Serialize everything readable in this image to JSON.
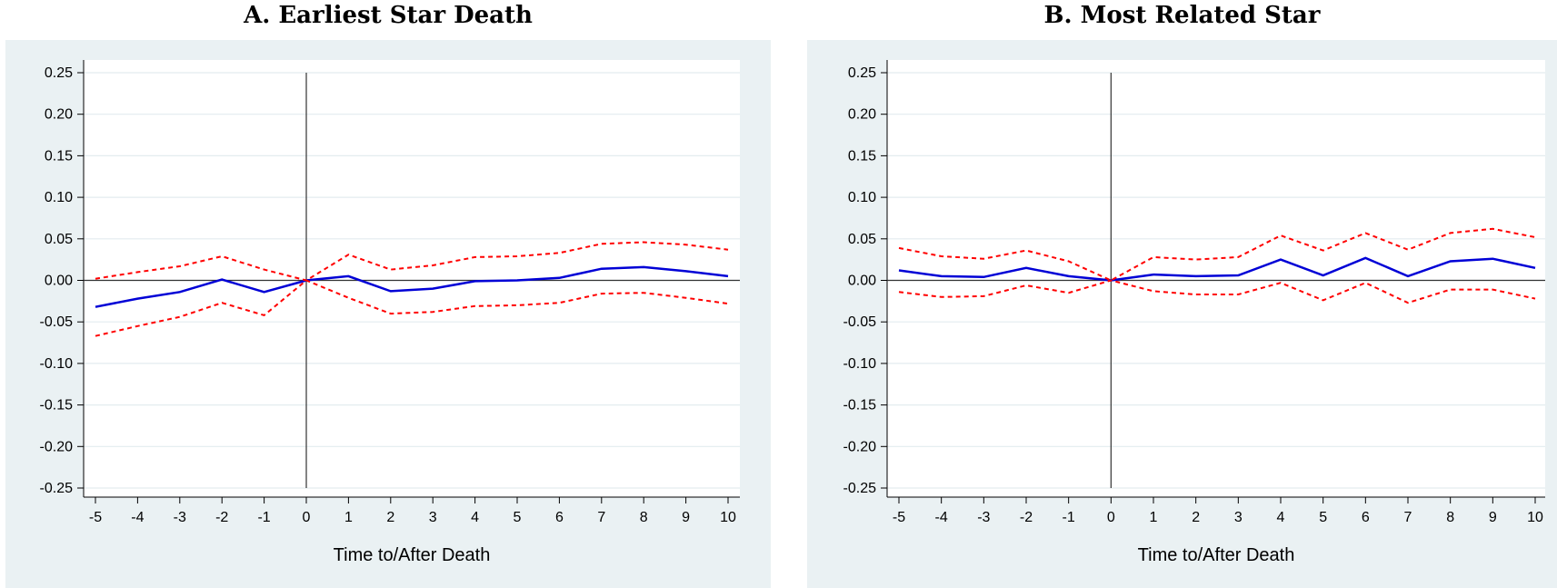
{
  "chart_data": [
    {
      "type": "line",
      "title": "A. Earliest Star Death",
      "xlabel": "Time to/After Death",
      "ylabel": "",
      "xlim": [
        -5,
        10
      ],
      "ylim": [
        -0.25,
        0.25
      ],
      "x": [
        -5,
        -4,
        -3,
        -2,
        -1,
        0,
        1,
        2,
        3,
        4,
        5,
        6,
        7,
        8,
        9,
        10
      ],
      "x_ticks": [
        "-5",
        "-4",
        "-3",
        "-2",
        "-1",
        "0",
        "1",
        "2",
        "3",
        "4",
        "5",
        "6",
        "7",
        "8",
        "9",
        "10"
      ],
      "y_ticks": [
        "0.25",
        "0.20",
        "0.15",
        "0.10",
        "0.05",
        "0.00",
        "-0.05",
        "-0.10",
        "-0.15",
        "-0.20",
        "-0.25"
      ],
      "grid": true,
      "reference_lines": {
        "x": 0,
        "y": 0
      },
      "series": [
        {
          "style": "solid",
          "color": "#0000d6",
          "values": [
            -0.032,
            -0.022,
            -0.014,
            0.001,
            -0.014,
            0.0,
            0.005,
            -0.013,
            -0.01,
            -0.001,
            0.0,
            0.003,
            0.014,
            0.016,
            0.011,
            0.005
          ]
        },
        {
          "style": "dashed",
          "color": "#ff0000",
          "values": [
            0.002,
            0.01,
            0.017,
            0.029,
            0.013,
            0.0,
            0.031,
            0.013,
            0.018,
            0.028,
            0.029,
            0.033,
            0.044,
            0.046,
            0.043,
            0.037
          ]
        },
        {
          "style": "dashed",
          "color": "#ff0000",
          "values": [
            -0.067,
            -0.055,
            -0.044,
            -0.027,
            -0.042,
            0.0,
            -0.021,
            -0.04,
            -0.038,
            -0.031,
            -0.03,
            -0.027,
            -0.016,
            -0.015,
            -0.021,
            -0.028
          ]
        }
      ]
    },
    {
      "type": "line",
      "title": "B. Most Related Star",
      "xlabel": "Time to/After Death",
      "ylabel": "",
      "xlim": [
        -5,
        10
      ],
      "ylim": [
        -0.25,
        0.25
      ],
      "x": [
        -5,
        -4,
        -3,
        -2,
        -1,
        0,
        1,
        2,
        3,
        4,
        5,
        6,
        7,
        8,
        9,
        10
      ],
      "x_ticks": [
        "-5",
        "-4",
        "-3",
        "-2",
        "-1",
        "0",
        "1",
        "2",
        "3",
        "4",
        "5",
        "6",
        "7",
        "8",
        "9",
        "10"
      ],
      "y_ticks": [
        "0.25",
        "0.20",
        "0.15",
        "0.10",
        "0.05",
        "0.00",
        "-0.05",
        "-0.10",
        "-0.15",
        "-0.20",
        "-0.25"
      ],
      "grid": true,
      "reference_lines": {
        "x": 0,
        "y": 0
      },
      "series": [
        {
          "style": "solid",
          "color": "#0000d6",
          "values": [
            0.012,
            0.005,
            0.004,
            0.015,
            0.005,
            0.0,
            0.007,
            0.005,
            0.006,
            0.025,
            0.006,
            0.027,
            0.005,
            0.023,
            0.026,
            0.015
          ]
        },
        {
          "style": "dashed",
          "color": "#ff0000",
          "values": [
            0.039,
            0.029,
            0.026,
            0.036,
            0.023,
            0.0,
            0.028,
            0.025,
            0.028,
            0.054,
            0.036,
            0.057,
            0.037,
            0.057,
            0.062,
            0.052
          ]
        },
        {
          "style": "dashed",
          "color": "#ff0000",
          "values": [
            -0.014,
            -0.02,
            -0.019,
            -0.006,
            -0.015,
            0.0,
            -0.013,
            -0.017,
            -0.017,
            -0.003,
            -0.024,
            -0.003,
            -0.027,
            -0.011,
            -0.011,
            -0.022
          ]
        }
      ]
    }
  ]
}
